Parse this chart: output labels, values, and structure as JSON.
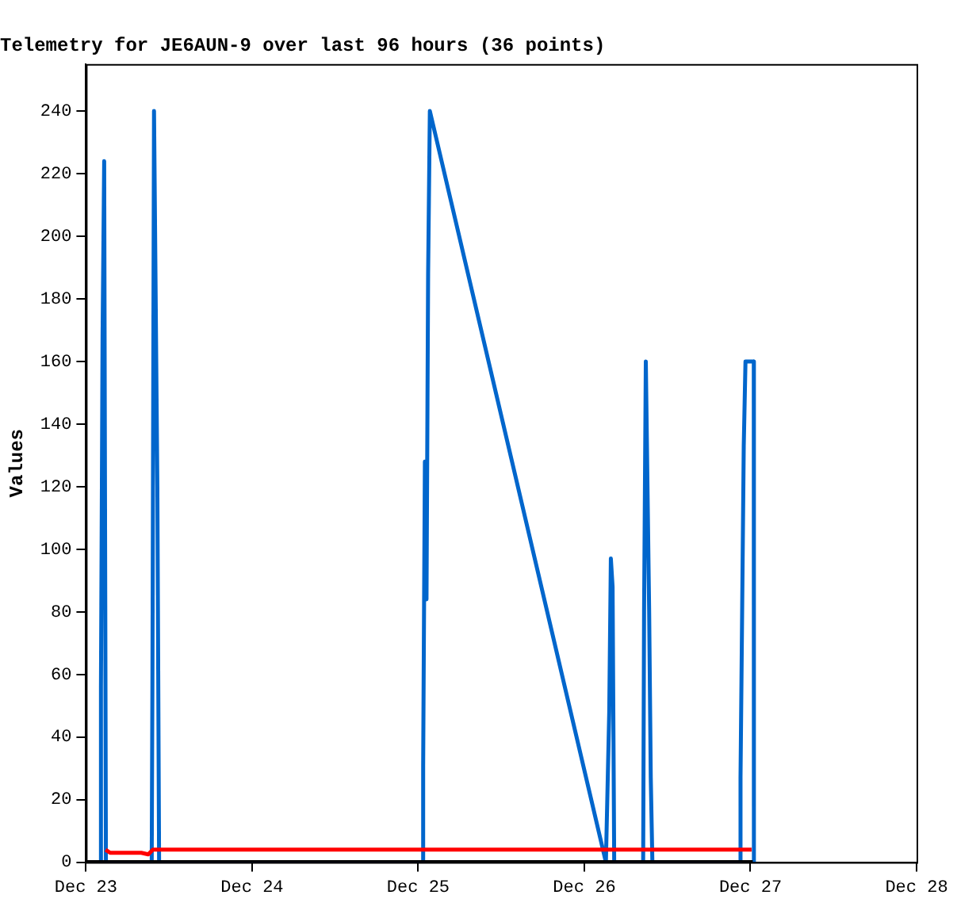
{
  "chart_data": {
    "type": "line",
    "title": "Telemetry for JE6AUN-9 over last 96 hours (36 points)",
    "ylabel": "Values",
    "xlim": [
      "--12-23",
      "--12-28"
    ],
    "xticks": [
      {
        "value": "--12-23",
        "label": "Dec 23"
      },
      {
        "value": "--12-24",
        "label": "Dec 24"
      },
      {
        "value": "--12-25",
        "label": "Dec 25"
      },
      {
        "value": "--12-26",
        "label": "Dec 26"
      },
      {
        "value": "--12-27",
        "label": "Dec 27"
      },
      {
        "value": "--12-28",
        "label": "Dec 28"
      }
    ],
    "ylim": [
      0,
      255
    ],
    "yticks": [
      0,
      20,
      40,
      60,
      80,
      100,
      120,
      140,
      160,
      180,
      200,
      220,
      240
    ],
    "grid": false,
    "legend": false,
    "marker": "none",
    "line_style": "solid",
    "series": [
      {
        "color": "#000000",
        "x": [
          "--12-23T00:00",
          "--12-27T00:20"
        ],
        "values": [
          0,
          0
        ]
      },
      {
        "color": "#ff0000",
        "x": [
          "--12-23T02:50",
          "--12-23T03:30",
          "--12-23T08:00",
          "--12-23T09:00",
          "--12-23T09:40",
          "--12-27T00:10"
        ],
        "values": [
          4,
          3,
          3,
          2.5,
          4,
          4
        ]
      },
      {
        "color": "#0066cc",
        "x": [
          "--12-23T02:05",
          "--12-23T02:10",
          "--12-23T02:24",
          "--12-23T02:38",
          "--12-23T02:53",
          "--12-23T09:30",
          "--12-23T09:36",
          "--12-23T09:50",
          "--12-23T10:19",
          "--12-23T10:34",
          "--12-25T00:40",
          "--12-25T00:43",
          "--12-25T00:58",
          "--12-25T01:12",
          "--12-25T01:26",
          "--12-25T01:41",
          "--12-26T03:07",
          "--12-26T03:36",
          "--12-26T03:50",
          "--12-26T04:05",
          "--12-26T04:19",
          "--12-26T08:30",
          "--12-26T08:38",
          "--12-26T08:53",
          "--12-26T09:22",
          "--12-26T09:36",
          "--12-26T09:50",
          "--12-26T22:30",
          "--12-26T22:34",
          "--12-26T22:48",
          "--12-26T23:02",
          "--12-26T23:17",
          "--12-27T00:29",
          "--12-27T00:30"
        ],
        "values": [
          0,
          56,
          168,
          224,
          0,
          0,
          56,
          240,
          120,
          0,
          0,
          31,
          128,
          84,
          188,
          240,
          0,
          48,
          97,
          88,
          0,
          0,
          80,
          160,
          80,
          27,
          0,
          0,
          27,
          80,
          133,
          160,
          160,
          0
        ]
      }
    ]
  }
}
